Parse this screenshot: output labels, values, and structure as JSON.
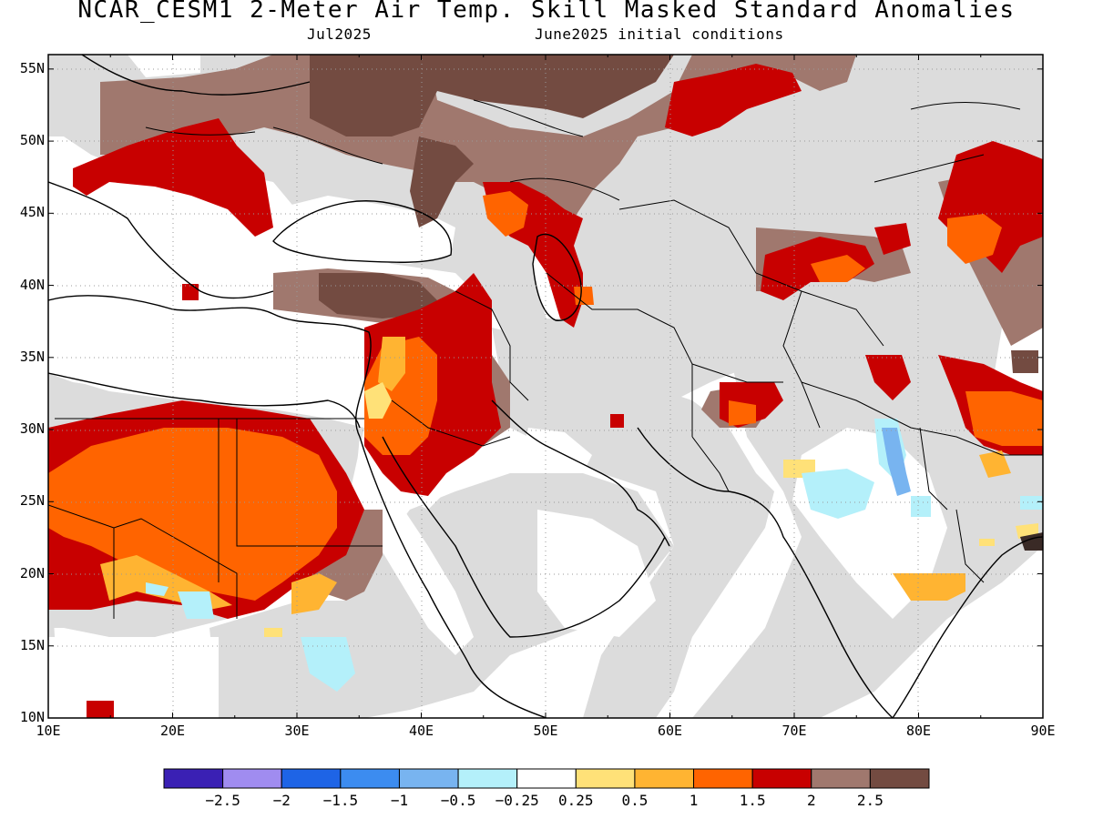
{
  "header": {
    "title": "NCAR_CESM1 2-Meter Air Temp. Skill Masked Standard Anomalies",
    "valid_month": "Jul2025",
    "initial_conditions": "June2025 initial conditions"
  },
  "map": {
    "lon_range": [
      10,
      90
    ],
    "lat_range": [
      10,
      56
    ],
    "lat_labels": [
      "10N",
      "15N",
      "20N",
      "25N",
      "30N",
      "35N",
      "40N",
      "45N",
      "50N",
      "55N"
    ],
    "lon_labels": [
      "10E",
      "20E",
      "30E",
      "40E",
      "50E",
      "60E",
      "70E",
      "80E",
      "90E"
    ],
    "grid": "dotted"
  },
  "colorbar": {
    "colors": [
      "#3a20b4",
      "#a08cf0",
      "#1e64e6",
      "#3c8cf0",
      "#78b4f0",
      "#b4f0fa",
      "#ffffff",
      "#ffe178",
      "#ffb432",
      "#ff6400",
      "#c80000",
      "#a0786e",
      "#734b41"
    ],
    "labels": [
      "−2.5",
      "−2",
      "−1.5",
      "−1",
      "−0.5",
      "−0.25",
      "0.25",
      "0.5",
      "1",
      "1.5",
      "2",
      "2.5"
    ]
  }
}
